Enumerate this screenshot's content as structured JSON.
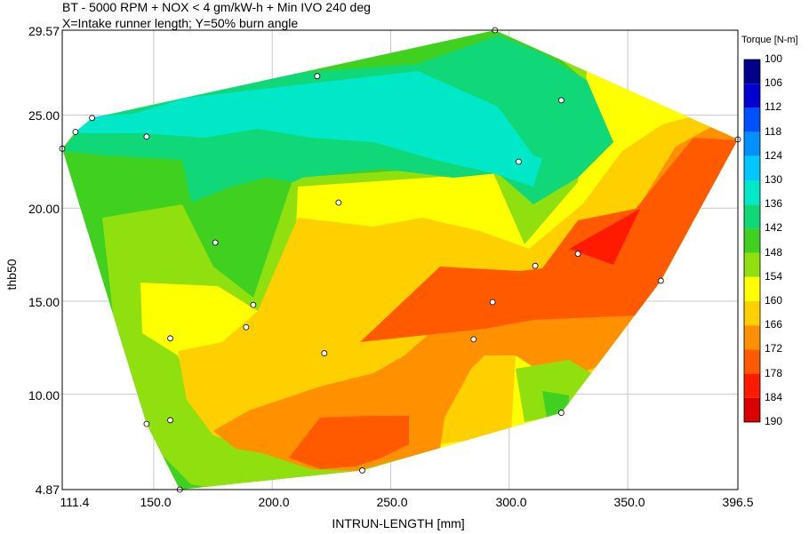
{
  "chart_data": {
    "type": "contour",
    "title": "BT - 5000 RPM + NOX < 4 gm/kW-h + Min IVO 240 deg",
    "subtitle": "X=Intake runner length; Y=50% burn angle",
    "xlabel": "INTRUN-LENGTH [mm]",
    "ylabel": "thb50",
    "xlim": [
      111.4,
      396.5
    ],
    "ylim": [
      4.87,
      29.57
    ],
    "x_tick_labels": [
      "111.4",
      "150.0",
      "200.0",
      "250.0",
      "300.0",
      "350.0",
      "396.5"
    ],
    "y_tick_labels": [
      "4.87",
      "10.00",
      "15.00",
      "20.00",
      "25.00",
      "29.57"
    ],
    "grid": true,
    "colorbar": {
      "title": "Torque [N-m]",
      "levels": [
        "100",
        "106",
        "112",
        "118",
        "124",
        "130",
        "136",
        "142",
        "148",
        "154",
        "160",
        "166",
        "172",
        "178",
        "184",
        "190"
      ],
      "colors": [
        "#00008b",
        "#0000d0",
        "#0050ff",
        "#0090ff",
        "#00c8ff",
        "#00e8c8",
        "#10d878",
        "#40d020",
        "#90e010",
        "#ffff00",
        "#ffd000",
        "#ff9000",
        "#ff5a00",
        "#ff1a00",
        "#d80000"
      ]
    },
    "points": [
      {
        "x": 111.4,
        "y": 23.2
      },
      {
        "x": 117.0,
        "y": 24.1
      },
      {
        "x": 124.0,
        "y": 24.85
      },
      {
        "x": 147.0,
        "y": 23.85
      },
      {
        "x": 219.0,
        "y": 27.1
      },
      {
        "x": 294.0,
        "y": 29.57
      },
      {
        "x": 322.0,
        "y": 25.8
      },
      {
        "x": 396.5,
        "y": 23.7
      },
      {
        "x": 304.0,
        "y": 22.5
      },
      {
        "x": 228.0,
        "y": 20.3
      },
      {
        "x": 176.0,
        "y": 18.15
      },
      {
        "x": 311.0,
        "y": 16.9
      },
      {
        "x": 329.0,
        "y": 17.55
      },
      {
        "x": 364.0,
        "y": 16.1
      },
      {
        "x": 293.0,
        "y": 14.95
      },
      {
        "x": 192.0,
        "y": 14.8
      },
      {
        "x": 189.0,
        "y": 13.6
      },
      {
        "x": 157.0,
        "y": 13.0
      },
      {
        "x": 285.0,
        "y": 12.95
      },
      {
        "x": 222.0,
        "y": 12.2
      },
      {
        "x": 322.0,
        "y": 9.0
      },
      {
        "x": 157.0,
        "y": 8.6
      },
      {
        "x": 147.0,
        "y": 8.4
      },
      {
        "x": 238.0,
        "y": 5.9
      },
      {
        "x": 161.0,
        "y": 4.87
      }
    ]
  }
}
